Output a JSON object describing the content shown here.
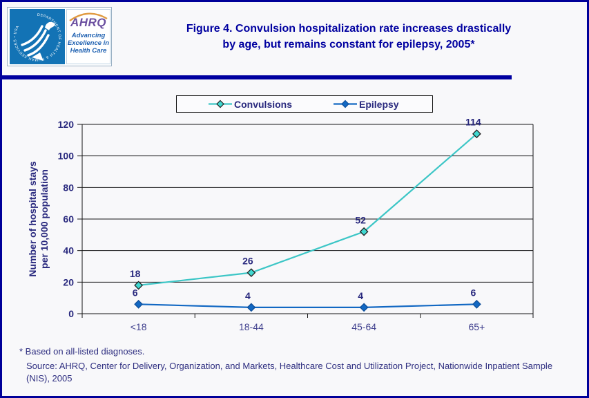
{
  "page": {
    "background": "#f8f8fa",
    "border_color": "#000099",
    "divider_color": "#0000a0"
  },
  "header": {
    "logo": {
      "hhs_seal_text": "DEPARTMENT OF HEALTH & HUMAN SERVICES • USA",
      "ahrq_acronym": "AHRQ",
      "tagline_line1": "Advancing",
      "tagline_line2": "Excellence in",
      "tagline_line3": "Health Care",
      "seal_background": "#1373b5",
      "acronym_color": "#6b4fa0",
      "arc_color": "#e09a40",
      "tagline_color": "#1c5fb0"
    },
    "title_line1": "Figure 4. Convulsion hospitalization rate increases drastically",
    "title_line2": "by age, but remains constant for epilepsy, 2005*",
    "title_color": "#0000a0"
  },
  "chart_data": {
    "type": "line",
    "title": "Figure 4. Convulsion hospitalization rate increases drastically by age, but remains constant for epilepsy, 2005*",
    "categories": [
      "<18",
      "18-44",
      "45-64",
      "65+"
    ],
    "series": [
      {
        "name": "Convulsions",
        "values": [
          18,
          26,
          52,
          114
        ],
        "color": "#3cc6c6",
        "marker_fill": "#40d8d0",
        "marker_stroke": "#222222"
      },
      {
        "name": "Epilepsy",
        "values": [
          6,
          4,
          4,
          6
        ],
        "color": "#1268c3",
        "marker_fill": "#1268c3",
        "marker_stroke": "#0f4f9a"
      }
    ],
    "xlabel": "",
    "ylabel_line1": "Number of hospital stays",
    "ylabel_line2": "per 10,000 population",
    "ylim": [
      0,
      120
    ],
    "yticks": [
      0,
      20,
      40,
      60,
      80,
      100,
      120
    ],
    "grid": "horizontal",
    "legend_position": "top",
    "data_labels_shown": true
  },
  "footer": {
    "footnote": "* Based on all-listed diagnoses.",
    "source_line1": "Source: AHRQ, Center for Delivery, Organization, and Markets, Healthcare Cost and Utilization Project, Nationwide Inpatient Sample",
    "source_line2": "(NIS), 2005"
  }
}
